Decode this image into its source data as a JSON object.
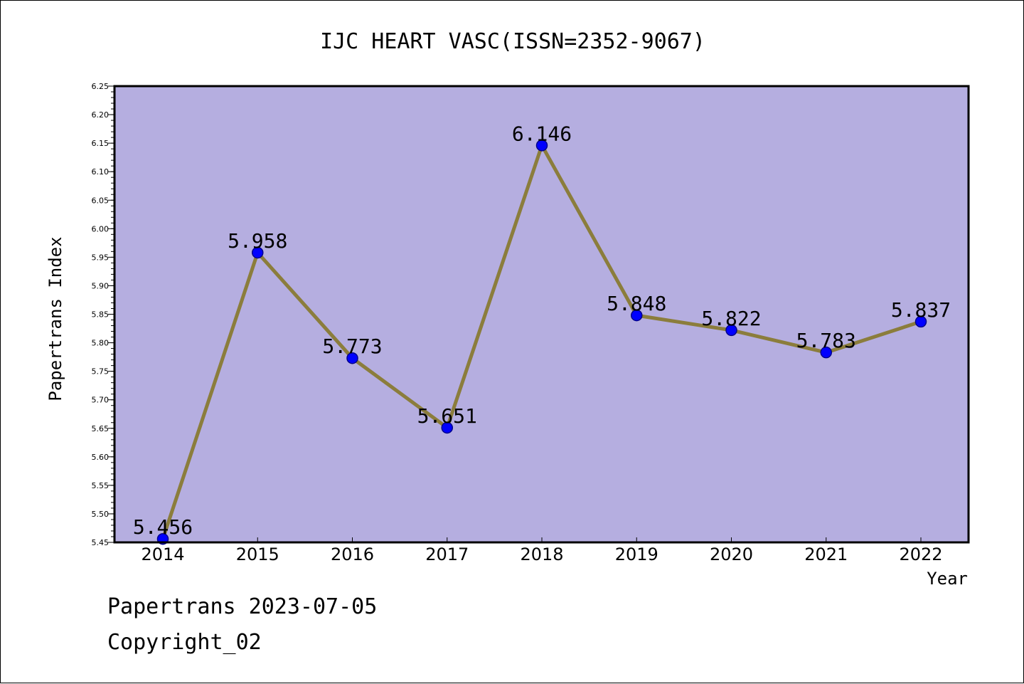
{
  "chart_data": {
    "type": "line",
    "title": "IJC HEART VASC(ISSN=2352-9067)",
    "xlabel": "Year",
    "ylabel": "Papertrans Index",
    "categories": [
      "2014",
      "2015",
      "2016",
      "2017",
      "2018",
      "2019",
      "2020",
      "2021",
      "2022"
    ],
    "values": [
      5.456,
      5.958,
      5.773,
      5.651,
      6.146,
      5.848,
      5.822,
      5.783,
      5.837
    ],
    "data_labels": [
      "5.456",
      "5.958",
      "5.773",
      "5.651",
      "6.146",
      "5.848",
      "5.822",
      "5.783",
      "5.837"
    ],
    "ylim": [
      5.45,
      6.25
    ],
    "yticks": [
      "5.45",
      "5.50",
      "5.55",
      "5.60",
      "5.65",
      "5.70",
      "5.75",
      "5.80",
      "5.85",
      "5.90",
      "5.95",
      "6.00",
      "6.05",
      "6.10",
      "6.15",
      "6.20",
      "6.25"
    ],
    "grid": false,
    "legend": "none",
    "colors": {
      "plot_background": "#b5aee0",
      "line": "#8b7d3c",
      "marker": "#0000ff"
    }
  },
  "footer": {
    "line1": "Papertrans 2023-07-05",
    "line2": "Copyright_02"
  }
}
